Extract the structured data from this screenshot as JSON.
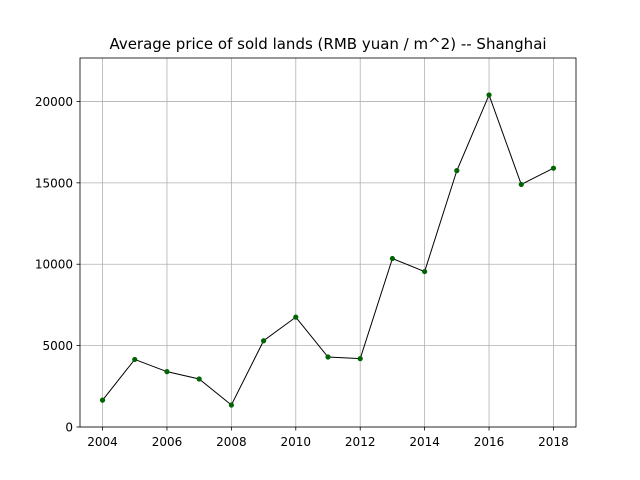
{
  "chart_data": {
    "type": "line",
    "title": "Average price of sold lands (RMB yuan / m^2) -- Shanghai",
    "xlabel": "",
    "ylabel": "",
    "x": [
      2004,
      2005,
      2006,
      2007,
      2008,
      2009,
      2010,
      2011,
      2012,
      2013,
      2014,
      2015,
      2016,
      2017,
      2018
    ],
    "series": [
      {
        "values": [
          1650,
          4150,
          3400,
          2950,
          1350,
          5300,
          6750,
          4300,
          4200,
          10350,
          9550,
          15750,
          20400,
          14900,
          15900
        ],
        "line_color": "#000000",
        "marker_color": "#006400"
      }
    ],
    "xlim": [
      2003.3,
      2018.7
    ],
    "ylim": [
      0,
      22670
    ],
    "xticks": [
      "2004",
      "2006",
      "2008",
      "2010",
      "2012",
      "2014",
      "2016",
      "2018"
    ],
    "yticks": [
      "0",
      "5000",
      "10000",
      "15000",
      "20000"
    ],
    "grid": true,
    "legend": "none",
    "grid_color": "#b0b0b0"
  }
}
